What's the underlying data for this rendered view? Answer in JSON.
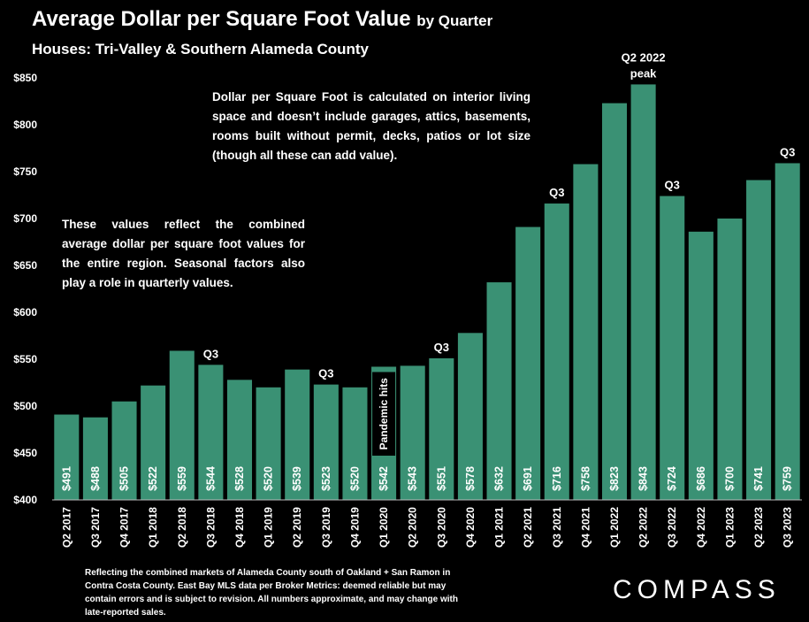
{
  "header": {
    "title": "Average Dollar per Square Foot Value",
    "title_suffix": "by Quarter",
    "subtitle": "Houses: Tri-Valley & Southern Alameda County"
  },
  "notes": {
    "top": "Dollar per Square Foot is calculated on interior living space and doesn’t include garages, attics, basements, rooms built without permit, decks, patios or lot size (though all these can add value).",
    "left": "These values reflect the combined average dollar per square foot values for the entire region. Seasonal factors also play a role in quarterly values."
  },
  "footer": {
    "text": "Reflecting the combined markets of Alameda County south of Oakland + San Ramon in Contra Costa County. East Bay MLS data per Broker Metrics: deemed reliable but may contain errors and is subject to revision. All numbers approximate, and may change with late-reported sales."
  },
  "brand": {
    "name": "COMPASS"
  },
  "chart_data": {
    "type": "bar",
    "categories": [
      "Q2 2017",
      "Q3 2017",
      "Q4 2017",
      "Q1 2018",
      "Q2 2018",
      "Q3 2018",
      "Q4 2018",
      "Q1 2019",
      "Q2 2019",
      "Q3 2019",
      "Q4 2019",
      "Q1 2020",
      "Q2 2020",
      "Q3 2020",
      "Q4 2020",
      "Q1 2021",
      "Q2 2021",
      "Q3 2021",
      "Q4 2021",
      "Q1 2022",
      "Q2 2022",
      "Q3 2022",
      "Q4 2022",
      "Q1 2023",
      "Q2 2023",
      "Q3 2023"
    ],
    "values": [
      491,
      488,
      505,
      522,
      559,
      544,
      528,
      520,
      539,
      523,
      520,
      542,
      543,
      551,
      578,
      632,
      691,
      716,
      758,
      823,
      843,
      724,
      686,
      700,
      741,
      759
    ],
    "data_labels": [
      "$491",
      "$488",
      "$505",
      "$522",
      "$559",
      "$544",
      "$528",
      "$520",
      "$539",
      "$523",
      "$520",
      "$542",
      "$543",
      "$551",
      "$578",
      "$632",
      "$691",
      "$716",
      "$758",
      "$823",
      "$843",
      "$724",
      "$686",
      "$700",
      "$741",
      "$759"
    ],
    "ylim": [
      400,
      850
    ],
    "yticks": [
      400,
      450,
      500,
      550,
      600,
      650,
      700,
      750,
      800,
      850
    ],
    "ytick_labels": [
      "$400",
      "$450",
      "$500",
      "$550",
      "$600",
      "$650",
      "$700",
      "$750",
      "$800",
      "$850"
    ],
    "annotations": [
      {
        "category": "Q3 2018",
        "text": "Q3"
      },
      {
        "category": "Q3 2019",
        "text": "Q3"
      },
      {
        "category": "Q3 2020",
        "text": "Q3"
      },
      {
        "category": "Q3 2021",
        "text": "Q3"
      },
      {
        "category": "Q2 2022",
        "text": "Q2 2022"
      },
      {
        "category": "Q2 2022",
        "text": "peak"
      },
      {
        "category": "Q3 2022",
        "text": "Q3"
      },
      {
        "category": "Q3 2023",
        "text": "Q3"
      }
    ],
    "callout": {
      "category": "Q1 2020",
      "text": "Pandemic hits"
    },
    "bar_color": "#3a9174",
    "grid": false,
    "legend": "none"
  }
}
